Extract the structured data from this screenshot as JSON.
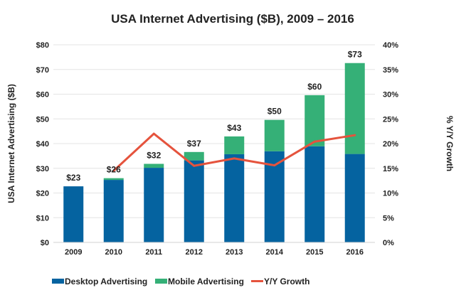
{
  "chart_data": {
    "type": "bar",
    "stacked": true,
    "title": "USA Internet Advertising ($B), 2009 – 2016",
    "ylabel": "USA Internet Advertising ($B)",
    "y2label": "% Y/Y Growth",
    "categories": [
      "2009",
      "2010",
      "2011",
      "2012",
      "2013",
      "2014",
      "2015",
      "2016"
    ],
    "ylim": [
      0,
      80
    ],
    "y_ticks": [
      "$0",
      "$10",
      "$20",
      "$30",
      "$40",
      "$50",
      "$60",
      "$70",
      "$80"
    ],
    "y2lim": [
      0,
      40
    ],
    "y2_ticks": [
      "0%",
      "5%",
      "10%",
      "15%",
      "20%",
      "25%",
      "30%",
      "35%",
      "40%"
    ],
    "grid": true,
    "legend_position": "bottom",
    "series": [
      {
        "name": "Desktop Advertising",
        "type": "bar",
        "color": "#0563a0",
        "values": [
          22.7,
          25.3,
          30.2,
          33.2,
          35.7,
          36.9,
          38.9,
          35.8
        ]
      },
      {
        "name": "Mobile Advertising",
        "type": "bar",
        "color": "#35b077",
        "values": [
          0,
          0.7,
          1.6,
          3.4,
          7.2,
          12.7,
          20.7,
          36.8
        ]
      },
      {
        "name": "Y/Y Growth",
        "type": "line",
        "axis": "right",
        "color": "#e5533d",
        "values": [
          null,
          14.5,
          22.0,
          15.5,
          17.0,
          15.6,
          20.4,
          21.7
        ]
      }
    ],
    "data_labels": [
      "$23",
      "$26",
      "$32",
      "$37",
      "$43",
      "$50",
      "$60",
      "$73"
    ]
  }
}
